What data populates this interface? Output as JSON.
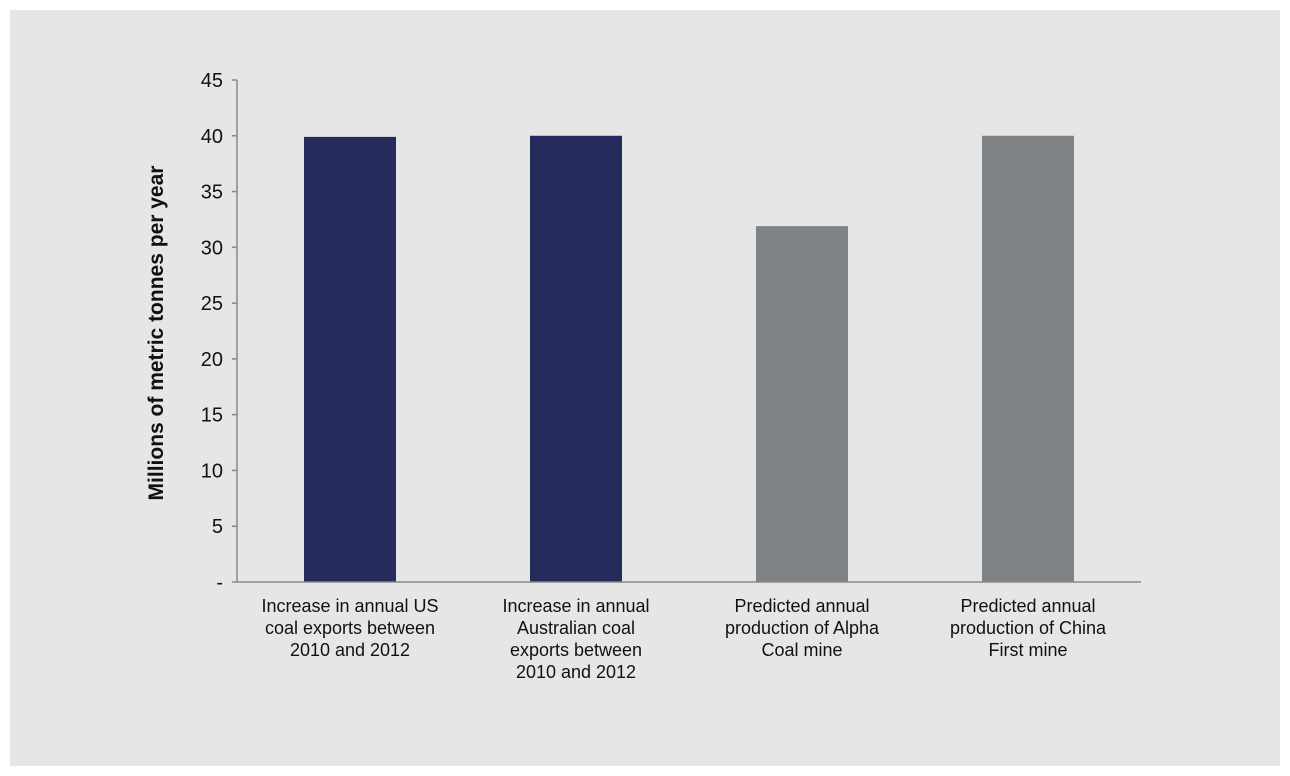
{
  "chart_data": {
    "type": "bar",
    "categories": [
      [
        "Increase in annual US",
        "coal exports between",
        "2010 and 2012"
      ],
      [
        "Increase in annual",
        "Australian coal",
        "exports between",
        "2010 and 2012"
      ],
      [
        "Predicted annual",
        "production of Alpha",
        "Coal mine"
      ],
      [
        "Predicted annual",
        "production of China",
        "First mine"
      ]
    ],
    "values": [
      39.9,
      40.0,
      31.9,
      40.0
    ],
    "bar_colors": [
      "#252b5a",
      "#252b5a",
      "#7f8386",
      "#7f8386"
    ],
    "ylabel": "Millions of metric tonnes per year",
    "ylim": [
      0,
      45
    ],
    "yticks": [
      0,
      5,
      10,
      15,
      20,
      25,
      30,
      35,
      40,
      45
    ],
    "ytick_labels": [
      "-",
      "5",
      "10",
      "15",
      "20",
      "25",
      "30",
      "35",
      "40",
      "45"
    ],
    "grid": false
  },
  "colors": {
    "background": "#e6e6e6",
    "axis": "#888888"
  }
}
